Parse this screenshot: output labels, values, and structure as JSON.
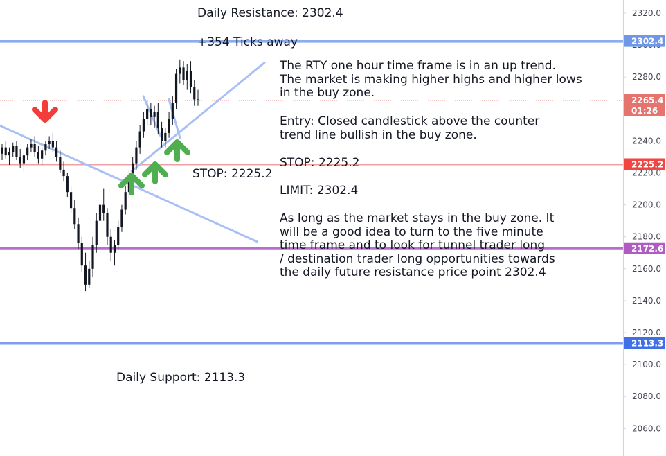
{
  "chart_data": {
    "type": "candlestick",
    "instrument": "RTY",
    "timeframe": "one hour",
    "ylim": [
      2050,
      2325
    ],
    "y_ticks": [
      2320.0,
      2300.0,
      2280.0,
      2260.0,
      2240.0,
      2220.0,
      2200.0,
      2180.0,
      2160.0,
      2140.0,
      2120.0,
      2100.0,
      2080.0,
      2060.0
    ],
    "price_tags": [
      {
        "name": "daily-resistance",
        "value": "2302.4",
        "color": "#6f97e8"
      },
      {
        "name": "last-price",
        "value": "2265.4",
        "sub": "01:26",
        "color": "#e5736e"
      },
      {
        "name": "stop",
        "value": "2225.2",
        "color": "#f04540"
      },
      {
        "name": "tunnel-level",
        "value": "2172.6",
        "color": "#b05bc4"
      },
      {
        "name": "daily-support",
        "value": "2113.3",
        "color": "#3f70e8"
      }
    ],
    "horizontal_lines": [
      {
        "name": "resistance",
        "y": 2302.4,
        "color": "#8aacf0"
      },
      {
        "name": "stop",
        "y": 2225.2,
        "color": "#f0a0a0"
      },
      {
        "name": "tunnel",
        "y": 2172.6,
        "color": "#b86cd0"
      },
      {
        "name": "support",
        "y": 2113.3,
        "color": "#7d9ef0"
      }
    ],
    "last_price": 2265.4,
    "trend_lines": [
      {
        "name": "counter-trend-line",
        "points": [
          [
            -2,
            2250
          ],
          [
            371,
            2177
          ]
        ]
      },
      {
        "name": "uptrend-line",
        "points": [
          [
            190,
            2221
          ],
          [
            382,
            2289
          ]
        ]
      },
      {
        "name": "swing-line-1",
        "points": [
          [
            207,
            2268
          ],
          [
            232,
            2243
          ]
        ]
      },
      {
        "name": "swing-line-2",
        "points": [
          [
            244,
            2266
          ],
          [
            260,
            2242
          ]
        ]
      }
    ],
    "candles": [
      [
        2232,
        2238,
        2228,
        2236
      ],
      [
        2236,
        2240,
        2229,
        2231
      ],
      [
        2231,
        2236,
        2225,
        2233
      ],
      [
        2233,
        2239,
        2230,
        2237
      ],
      [
        2237,
        2240,
        2228,
        2230
      ],
      [
        2230,
        2235,
        2223,
        2226
      ],
      [
        2226,
        2233,
        2221,
        2231
      ],
      [
        2231,
        2238,
        2228,
        2236
      ],
      [
        2236,
        2241,
        2233,
        2238
      ],
      [
        2238,
        2243,
        2230,
        2233
      ],
      [
        2233,
        2237,
        2226,
        2229
      ],
      [
        2229,
        2236,
        2225,
        2234
      ],
      [
        2234,
        2240,
        2231,
        2238
      ],
      [
        2238,
        2243,
        2235,
        2240
      ],
      [
        2240,
        2245,
        2233,
        2236
      ],
      [
        2236,
        2240,
        2227,
        2230
      ],
      [
        2230,
        2234,
        2220,
        2222
      ],
      [
        2222,
        2227,
        2215,
        2218
      ],
      [
        2218,
        2220,
        2205,
        2208
      ],
      [
        2208,
        2212,
        2195,
        2198
      ],
      [
        2198,
        2203,
        2185,
        2188
      ],
      [
        2188,
        2192,
        2172,
        2176
      ],
      [
        2176,
        2180,
        2158,
        2162
      ],
      [
        2162,
        2170,
        2146,
        2150
      ],
      [
        2150,
        2165,
        2148,
        2160
      ],
      [
        2160,
        2180,
        2155,
        2175
      ],
      [
        2175,
        2195,
        2170,
        2190
      ],
      [
        2190,
        2205,
        2185,
        2200
      ],
      [
        2200,
        2210,
        2190,
        2195
      ],
      [
        2195,
        2198,
        2175,
        2180
      ],
      [
        2180,
        2185,
        2165,
        2170
      ],
      [
        2170,
        2178,
        2162,
        2175
      ],
      [
        2175,
        2190,
        2172,
        2186
      ],
      [
        2186,
        2200,
        2183,
        2197
      ],
      [
        2197,
        2212,
        2194,
        2208
      ],
      [
        2208,
        2222,
        2204,
        2218
      ],
      [
        2218,
        2230,
        2215,
        2226
      ],
      [
        2226,
        2240,
        2222,
        2236
      ],
      [
        2236,
        2250,
        2232,
        2246
      ],
      [
        2246,
        2258,
        2242,
        2254
      ],
      [
        2254,
        2265,
        2250,
        2260
      ],
      [
        2260,
        2264,
        2250,
        2255
      ],
      [
        2255,
        2262,
        2248,
        2258
      ],
      [
        2258,
        2264,
        2244,
        2248
      ],
      [
        2248,
        2252,
        2236,
        2240
      ],
      [
        2240,
        2248,
        2236,
        2245
      ],
      [
        2245,
        2258,
        2242,
        2254
      ],
      [
        2254,
        2268,
        2250,
        2264
      ],
      [
        2264,
        2285,
        2260,
        2282
      ],
      [
        2282,
        2291,
        2276,
        2286
      ],
      [
        2286,
        2290,
        2275,
        2278
      ],
      [
        2278,
        2288,
        2272,
        2284
      ],
      [
        2284,
        2290,
        2270,
        2274
      ],
      [
        2274,
        2278,
        2262,
        2266
      ],
      [
        2266,
        2272,
        2262,
        2265.4
      ]
    ],
    "arrows": [
      {
        "name": "down-arrow",
        "dir": "down",
        "color": "#f23e3a"
      },
      {
        "name": "up-arrow-1",
        "dir": "up",
        "color": "#4fae4f"
      },
      {
        "name": "up-arrow-2",
        "dir": "up",
        "color": "#4fae4f"
      },
      {
        "name": "up-arrow-3",
        "dir": "up",
        "color": "#4fae4f"
      }
    ]
  },
  "labels": {
    "daily_resistance": "Daily Resistance: 2302.4",
    "ticks_away": "+354 Ticks away",
    "stop_chart": "STOP: 2225.2",
    "daily_support": "Daily Support: 2113.3"
  },
  "notes": {
    "trend": "The RTY one hour time frame is in an up trend.\nThe market is making higher highs and higher lows\nin the buy zone.",
    "entry": "Entry: Closed candlestick above the counter\ntrend line bullish in the buy zone.",
    "stop": "STOP: 2225.2",
    "limit": "LIMIT: 2302.4",
    "plan": "As long as the market stays in the buy zone. It\nwill be a good idea to turn to the five minute\ntime frame and to look for tunnel trader long\n/ destination trader long opportunities towards\nthe daily future resistance price point 2302.4"
  },
  "colors": {
    "axis_bg": "#ffffff",
    "axis_border": "#d1d4dc",
    "candle": "#131722",
    "trend_line": "#a8c0f5",
    "last_price_line": "#e5736e"
  }
}
